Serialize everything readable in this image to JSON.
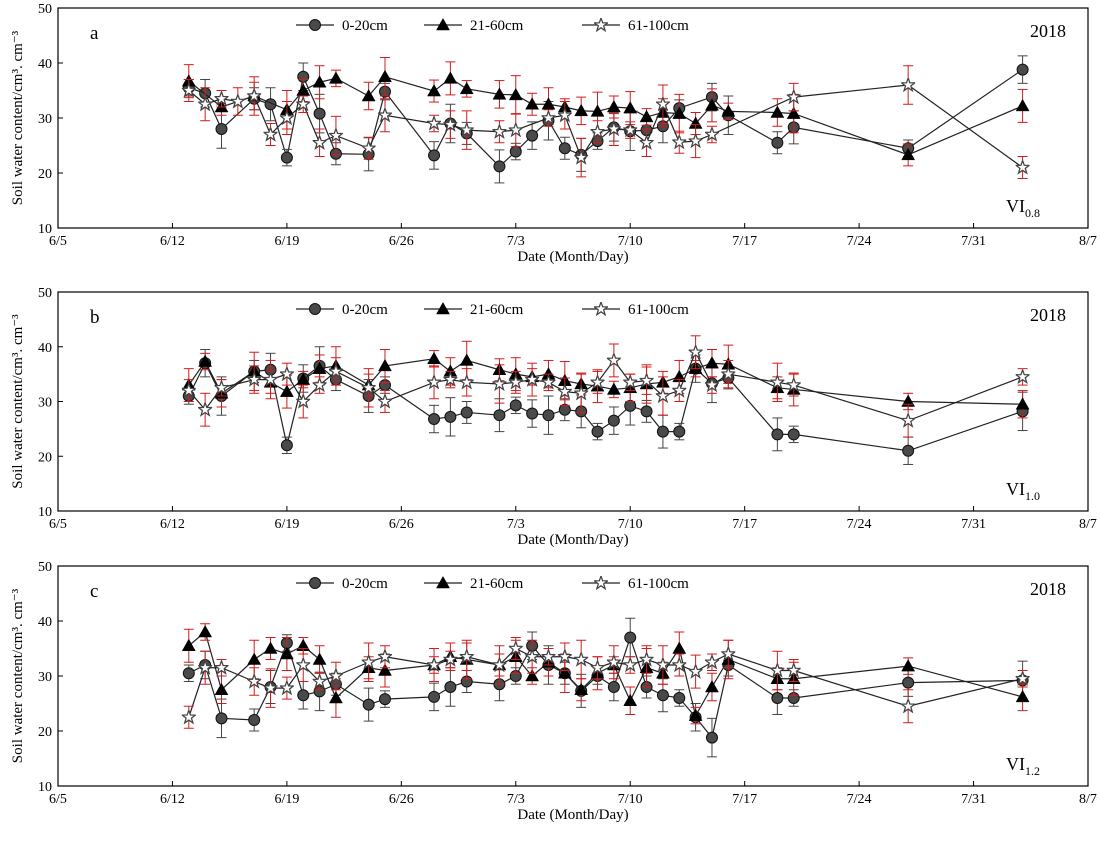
{
  "chart_data": [
    {
      "type": "line",
      "panel_letter": "a",
      "year": "2018",
      "treatment": {
        "base": "VI",
        "sub": "0.8"
      },
      "xlabel": "Date (Month/Day)",
      "ylabel": "Soil water content/cm³. cm⁻³",
      "xlim": [
        "6/5",
        "8/7"
      ],
      "ylim": [
        10,
        50
      ],
      "x_ticks": [
        "6/5",
        "6/12",
        "6/19",
        "6/26",
        "7/3",
        "7/10",
        "7/17",
        "7/24",
        "7/31",
        "8/7"
      ],
      "y_ticks": [
        10,
        20,
        30,
        40,
        50
      ],
      "legend_position": "top",
      "series": [
        {
          "name": "0-20cm",
          "marker": "circle",
          "x": [
            "6/13",
            "6/14",
            "6/15",
            "6/17",
            "6/18",
            "6/19",
            "6/20",
            "6/21",
            "6/22",
            "6/24",
            "6/25",
            "6/28",
            "6/29",
            "6/30",
            "7/2",
            "7/3",
            "7/4",
            "7/5",
            "7/6",
            "7/7",
            "7/8",
            "7/9",
            "7/10",
            "7/11",
            "7/12",
            "7/13",
            "7/15",
            "7/16",
            "7/19",
            "7/20",
            "7/27",
            "8/3"
          ],
          "y": [
            35.5,
            34.5,
            28,
            33.5,
            32.5,
            22.8,
            37.5,
            30.8,
            23.5,
            23.4,
            34.8,
            23.2,
            29,
            27.2,
            21.2,
            23.9,
            26.8,
            29.5,
            24.5,
            23.3,
            25.8,
            28.3,
            27.6,
            27.8,
            28.5,
            31.8,
            33.8,
            30.5,
            25.5,
            28.3,
            24.5,
            38.8
          ]
        },
        {
          "name": "21-60cm",
          "marker": "triangle",
          "x": [
            "6/13",
            "6/15",
            "6/17",
            "6/19",
            "6/20",
            "6/21",
            "6/22",
            "6/24",
            "6/25",
            "6/28",
            "6/29",
            "6/30",
            "7/2",
            "7/3",
            "7/4",
            "7/5",
            "7/6",
            "7/7",
            "7/8",
            "7/9",
            "7/10",
            "7/11",
            "7/12",
            "7/13",
            "7/14",
            "7/15",
            "7/16",
            "7/19",
            "7/20",
            "7/27",
            "8/3"
          ],
          "y": [
            36.7,
            32,
            34,
            31.5,
            35,
            36.5,
            37.2,
            34,
            37.5,
            34.9,
            37.2,
            35.3,
            34.3,
            34.2,
            32.5,
            32.5,
            32,
            31.3,
            31.2,
            32,
            31.8,
            30.2,
            31,
            30.8,
            29,
            32.3,
            31.2,
            31,
            30.8,
            23.3,
            32.2
          ]
        },
        {
          "name": "61-100cm",
          "marker": "star",
          "x": [
            "6/13",
            "6/14",
            "6/15",
            "6/16",
            "6/17",
            "6/18",
            "6/19",
            "6/20",
            "6/21",
            "6/22",
            "6/24",
            "6/25",
            "6/28",
            "6/29",
            "6/30",
            "7/2",
            "7/3",
            "7/5",
            "7/6",
            "7/7",
            "7/8",
            "7/9",
            "7/10",
            "7/11",
            "7/12",
            "7/13",
            "7/14",
            "7/15",
            "7/20",
            "7/27",
            "8/3"
          ],
          "y": [
            35,
            32.5,
            33.5,
            33,
            34,
            27,
            30,
            32.5,
            25.5,
            26.8,
            24.5,
            30.5,
            29,
            28.8,
            27.8,
            27.5,
            27.8,
            30,
            30.5,
            22.8,
            27.5,
            28,
            27.8,
            25.5,
            32.5,
            25.6,
            25.8,
            27,
            33.8,
            36,
            21
          ]
        }
      ]
    },
    {
      "type": "line",
      "panel_letter": "b",
      "year": "2018",
      "treatment": {
        "base": "VI",
        "sub": "1.0"
      },
      "xlabel": "Date (Month/Day)",
      "ylabel": "Soil water content/cm³. cm⁻³",
      "xlim": [
        "6/5",
        "8/7"
      ],
      "ylim": [
        10,
        50
      ],
      "x_ticks": [
        "6/5",
        "6/12",
        "6/19",
        "6/26",
        "7/3",
        "7/10",
        "7/17",
        "7/24",
        "7/31",
        "8/7"
      ],
      "y_ticks": [
        10,
        20,
        30,
        40,
        50
      ],
      "legend_position": "top",
      "series": [
        {
          "name": "0-20cm",
          "marker": "circle",
          "x": [
            "6/13",
            "6/14",
            "6/15",
            "6/17",
            "6/18",
            "6/19",
            "6/20",
            "6/21",
            "6/22",
            "6/24",
            "6/25",
            "6/28",
            "6/29",
            "6/30",
            "7/2",
            "7/3",
            "7/4",
            "7/5",
            "7/6",
            "7/7",
            "7/8",
            "7/9",
            "7/10",
            "7/11",
            "7/12",
            "7/13",
            "7/14",
            "7/15",
            "7/16",
            "7/19",
            "7/20",
            "7/27",
            "8/3"
          ],
          "y": [
            31,
            37,
            31,
            35.5,
            35.8,
            22,
            34.2,
            36.5,
            34,
            31,
            33,
            26.8,
            27.2,
            28,
            27.5,
            29.3,
            27.8,
            27.5,
            28.5,
            28.2,
            24.5,
            26.5,
            29.2,
            28.2,
            24.5,
            24.5,
            36,
            33.3,
            34.3,
            24,
            24,
            21,
            28.2
          ]
        },
        {
          "name": "21-60cm",
          "marker": "triangle",
          "x": [
            "6/13",
            "6/14",
            "6/15",
            "6/17",
            "6/18",
            "6/19",
            "6/20",
            "6/21",
            "6/22",
            "6/24",
            "6/25",
            "6/28",
            "6/29",
            "6/30",
            "7/2",
            "7/3",
            "7/4",
            "7/5",
            "7/6",
            "7/7",
            "7/8",
            "7/9",
            "7/10",
            "7/11",
            "7/12",
            "7/13",
            "7/14",
            "7/15",
            "7/16",
            "7/19",
            "7/20",
            "7/27",
            "8/3"
          ],
          "y": [
            33,
            37.3,
            31.5,
            35.5,
            33.5,
            31.8,
            34,
            36,
            36.5,
            33,
            36.5,
            37.8,
            35.5,
            37.5,
            35.8,
            35,
            34.5,
            35,
            33.8,
            33.2,
            32.8,
            32.2,
            32.5,
            33.2,
            33.5,
            34.5,
            36,
            37,
            36.8,
            32.5,
            32.2,
            30,
            29.5
          ]
        },
        {
          "name": "61-100cm",
          "marker": "star",
          "x": [
            "6/13",
            "6/14",
            "6/15",
            "6/17",
            "6/18",
            "6/19",
            "6/20",
            "6/21",
            "6/22",
            "6/24",
            "6/25",
            "6/28",
            "6/29",
            "6/30",
            "7/2",
            "7/3",
            "7/4",
            "7/5",
            "7/6",
            "7/7",
            "7/8",
            "7/9",
            "7/10",
            "7/11",
            "7/12",
            "7/13",
            "7/14",
            "7/15",
            "7/16",
            "7/19",
            "7/20",
            "7/27",
            "8/3"
          ],
          "y": [
            32,
            28.5,
            32.5,
            34,
            34,
            35,
            30,
            33,
            35.5,
            32.5,
            30,
            33.5,
            34,
            33.5,
            33.2,
            33.5,
            34,
            33.5,
            31.8,
            31.5,
            33.5,
            37.5,
            33.5,
            33.8,
            31,
            32,
            39,
            33,
            35,
            33.5,
            33,
            26.5,
            34.5
          ]
        }
      ]
    },
    {
      "type": "line",
      "panel_letter": "c",
      "year": "2018",
      "treatment": {
        "base": "VI",
        "sub": "1.2"
      },
      "xlabel": "Date (Month/Day)",
      "ylabel": "Soil water content/cm³. cm⁻³",
      "xlim": [
        "6/5",
        "8/7"
      ],
      "ylim": [
        10,
        50
      ],
      "x_ticks": [
        "6/5",
        "6/12",
        "6/19",
        "6/26",
        "7/3",
        "7/10",
        "7/17",
        "7/24",
        "7/31",
        "8/7"
      ],
      "y_ticks": [
        10,
        20,
        30,
        40,
        50
      ],
      "legend_position": "top",
      "series": [
        {
          "name": "0-20cm",
          "marker": "circle",
          "x": [
            "6/13",
            "6/14",
            "6/15",
            "6/17",
            "6/18",
            "6/19",
            "6/20",
            "6/21",
            "6/22",
            "6/24",
            "6/25",
            "6/28",
            "6/29",
            "6/30",
            "7/2",
            "7/3",
            "7/4",
            "7/5",
            "7/6",
            "7/7",
            "7/8",
            "7/9",
            "7/10",
            "7/11",
            "7/12",
            "7/13",
            "7/14",
            "7/15",
            "7/16",
            "7/19",
            "7/20",
            "7/27",
            "8/3"
          ],
          "y": [
            30.5,
            32,
            22.3,
            22,
            28,
            36,
            26.5,
            27.2,
            28.5,
            24.8,
            25.8,
            26.2,
            28,
            29,
            28.5,
            30,
            35.5,
            32,
            30.5,
            27.3,
            30,
            28,
            37,
            28,
            26.5,
            26,
            22.5,
            18.8,
            32,
            26,
            26,
            28.8,
            29.2
          ]
        },
        {
          "name": "21-60cm",
          "marker": "triangle",
          "x": [
            "6/13",
            "6/14",
            "6/15",
            "6/17",
            "6/18",
            "6/19",
            "6/20",
            "6/21",
            "6/22",
            "6/24",
            "6/25",
            "6/28",
            "6/29",
            "6/30",
            "7/2",
            "7/3",
            "7/4",
            "7/5",
            "7/6",
            "7/7",
            "7/8",
            "7/9",
            "7/10",
            "7/11",
            "7/12",
            "7/13",
            "7/14",
            "7/15",
            "7/16",
            "7/19",
            "7/20",
            "7/27",
            "8/3"
          ],
          "y": [
            35.5,
            38,
            27.5,
            33,
            35,
            34,
            35.5,
            33,
            26,
            31.5,
            31,
            32,
            33.5,
            33,
            32,
            33.5,
            30,
            32.5,
            30.5,
            27.5,
            30.5,
            32,
            25.5,
            31.5,
            30.5,
            35,
            22.8,
            28,
            33,
            29.5,
            29.5,
            31.8,
            26.2
          ]
        },
        {
          "name": "61-100cm",
          "marker": "star",
          "x": [
            "6/13",
            "6/14",
            "6/15",
            "6/17",
            "6/18",
            "6/19",
            "6/20",
            "6/21",
            "6/22",
            "6/24",
            "6/25",
            "6/28",
            "6/29",
            "6/30",
            "7/2",
            "7/3",
            "7/4",
            "7/5",
            "7/6",
            "7/7",
            "7/8",
            "7/9",
            "7/10",
            "7/11",
            "7/12",
            "7/13",
            "7/14",
            "7/15",
            "7/16",
            "7/19",
            "7/20",
            "7/27",
            "8/3"
          ],
          "y": [
            22.5,
            31.5,
            31.5,
            29,
            27.8,
            27.8,
            32,
            29,
            30,
            32.5,
            33.5,
            32,
            33,
            33.5,
            32,
            35,
            33.5,
            33.5,
            33.5,
            33,
            31.5,
            32.5,
            32,
            33,
            32,
            32,
            30.8,
            32.5,
            34,
            31,
            31,
            24.5,
            29.5
          ]
        }
      ]
    }
  ]
}
